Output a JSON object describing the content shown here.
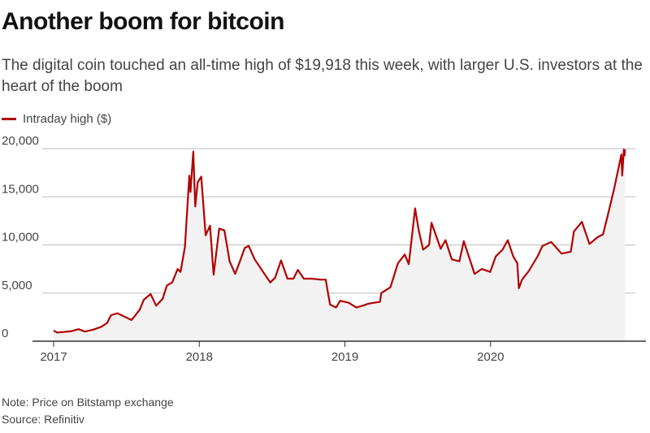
{
  "header": {
    "title": "Another boom for bitcoin",
    "subtitle": "The digital coin touched an all-time high of $19,918 this week, with larger U.S. investors at the heart of the boom"
  },
  "legend": {
    "label": "Intraday high ($)"
  },
  "footer": {
    "note": "Note: Price on Bitstamp exchange",
    "source": "Source: Refinitiv"
  },
  "colors": {
    "line": "#b20000",
    "area": "#f2f2f2",
    "grid": "#bdbdbd",
    "axis": "#333333"
  },
  "chart_data": {
    "type": "line",
    "title": "Another boom for bitcoin",
    "series": [
      {
        "name": "Intraday high ($)",
        "points": [
          [
            "2017-01-01",
            1100
          ],
          [
            "2017-01-10",
            900
          ],
          [
            "2017-01-25",
            950
          ],
          [
            "2017-02-15",
            1050
          ],
          [
            "2017-03-05",
            1250
          ],
          [
            "2017-03-20",
            1000
          ],
          [
            "2017-04-10",
            1200
          ],
          [
            "2017-05-01",
            1500
          ],
          [
            "2017-05-15",
            1900
          ],
          [
            "2017-05-25",
            2700
          ],
          [
            "2017-06-10",
            2900
          ],
          [
            "2017-06-25",
            2600
          ],
          [
            "2017-07-15",
            2200
          ],
          [
            "2017-07-25",
            2700
          ],
          [
            "2017-08-05",
            3300
          ],
          [
            "2017-08-15",
            4300
          ],
          [
            "2017-09-01",
            4900
          ],
          [
            "2017-09-15",
            3700
          ],
          [
            "2017-10-01",
            4400
          ],
          [
            "2017-10-12",
            5800
          ],
          [
            "2017-10-25",
            6100
          ],
          [
            "2017-11-08",
            7500
          ],
          [
            "2017-11-15",
            7200
          ],
          [
            "2017-11-26",
            9800
          ],
          [
            "2017-12-07",
            17200
          ],
          [
            "2017-12-10",
            15500
          ],
          [
            "2017-12-17",
            19700
          ],
          [
            "2017-12-22",
            14000
          ],
          [
            "2017-12-28",
            16500
          ],
          [
            "2018-01-06",
            17100
          ],
          [
            "2018-01-17",
            11000
          ],
          [
            "2018-01-28",
            12000
          ],
          [
            "2018-02-06",
            6900
          ],
          [
            "2018-02-20",
            11700
          ],
          [
            "2018-03-05",
            11500
          ],
          [
            "2018-03-18",
            8300
          ],
          [
            "2018-04-01",
            7000
          ],
          [
            "2018-04-12",
            8200
          ],
          [
            "2018-04-25",
            9700
          ],
          [
            "2018-05-05",
            9900
          ],
          [
            "2018-05-20",
            8500
          ],
          [
            "2018-06-10",
            7200
          ],
          [
            "2018-06-28",
            6100
          ],
          [
            "2018-07-10",
            6600
          ],
          [
            "2018-07-25",
            8400
          ],
          [
            "2018-08-10",
            6500
          ],
          [
            "2018-08-25",
            6500
          ],
          [
            "2018-09-05",
            7400
          ],
          [
            "2018-09-20",
            6500
          ],
          [
            "2018-10-10",
            6500
          ],
          [
            "2018-10-31",
            6400
          ],
          [
            "2018-11-14",
            6400
          ],
          [
            "2018-11-20",
            4900
          ],
          [
            "2018-11-25",
            3800
          ],
          [
            "2018-12-10",
            3500
          ],
          [
            "2018-12-20",
            4200
          ],
          [
            "2019-01-10",
            4000
          ],
          [
            "2019-01-30",
            3500
          ],
          [
            "2019-02-15",
            3700
          ],
          [
            "2019-03-01",
            3900
          ],
          [
            "2019-03-30",
            4100
          ],
          [
            "2019-04-02",
            5000
          ],
          [
            "2019-04-25",
            5600
          ],
          [
            "2019-05-14",
            8100
          ],
          [
            "2019-05-31",
            9000
          ],
          [
            "2019-06-10",
            8000
          ],
          [
            "2019-06-26",
            13800
          ],
          [
            "2019-07-05",
            11500
          ],
          [
            "2019-07-16",
            9500
          ],
          [
            "2019-07-31",
            10000
          ],
          [
            "2019-08-06",
            12300
          ],
          [
            "2019-08-29",
            9600
          ],
          [
            "2019-09-10",
            10500
          ],
          [
            "2019-09-26",
            8500
          ],
          [
            "2019-10-15",
            8300
          ],
          [
            "2019-10-26",
            10400
          ],
          [
            "2019-11-22",
            7000
          ],
          [
            "2019-12-10",
            7500
          ],
          [
            "2019-12-31",
            7200
          ],
          [
            "2020-01-14",
            8800
          ],
          [
            "2020-01-31",
            9500
          ],
          [
            "2020-02-13",
            10500
          ],
          [
            "2020-02-27",
            8800
          ],
          [
            "2020-03-08",
            8100
          ],
          [
            "2020-03-12",
            5500
          ],
          [
            "2020-03-20",
            6400
          ],
          [
            "2020-04-06",
            7300
          ],
          [
            "2020-04-29",
            8900
          ],
          [
            "2020-05-10",
            9900
          ],
          [
            "2020-06-01",
            10300
          ],
          [
            "2020-06-27",
            9100
          ],
          [
            "2020-07-20",
            9300
          ],
          [
            "2020-07-28",
            11400
          ],
          [
            "2020-08-17",
            12400
          ],
          [
            "2020-09-05",
            10100
          ],
          [
            "2020-09-25",
            10800
          ],
          [
            "2020-10-09",
            11100
          ],
          [
            "2020-10-21",
            13100
          ],
          [
            "2020-11-05",
            15700
          ],
          [
            "2020-11-24",
            19400
          ],
          [
            "2020-11-26",
            17200
          ],
          [
            "2020-11-30",
            19900
          ],
          [
            "2020-12-02",
            19300
          ],
          [
            "2020-12-03",
            19918
          ]
        ]
      }
    ],
    "x_ticks": [
      "2017",
      "2018",
      "2019",
      "2020"
    ],
    "xlim": [
      "2017-01-01",
      "2020-12-31"
    ],
    "ylim": [
      0,
      20000
    ],
    "y_ticks": [
      0,
      5000,
      10000,
      15000,
      20000
    ],
    "y_tick_labels": [
      "0",
      "5,000",
      "10,000",
      "15,000",
      "20,000"
    ],
    "grid": true,
    "legend_position": "top-left"
  }
}
